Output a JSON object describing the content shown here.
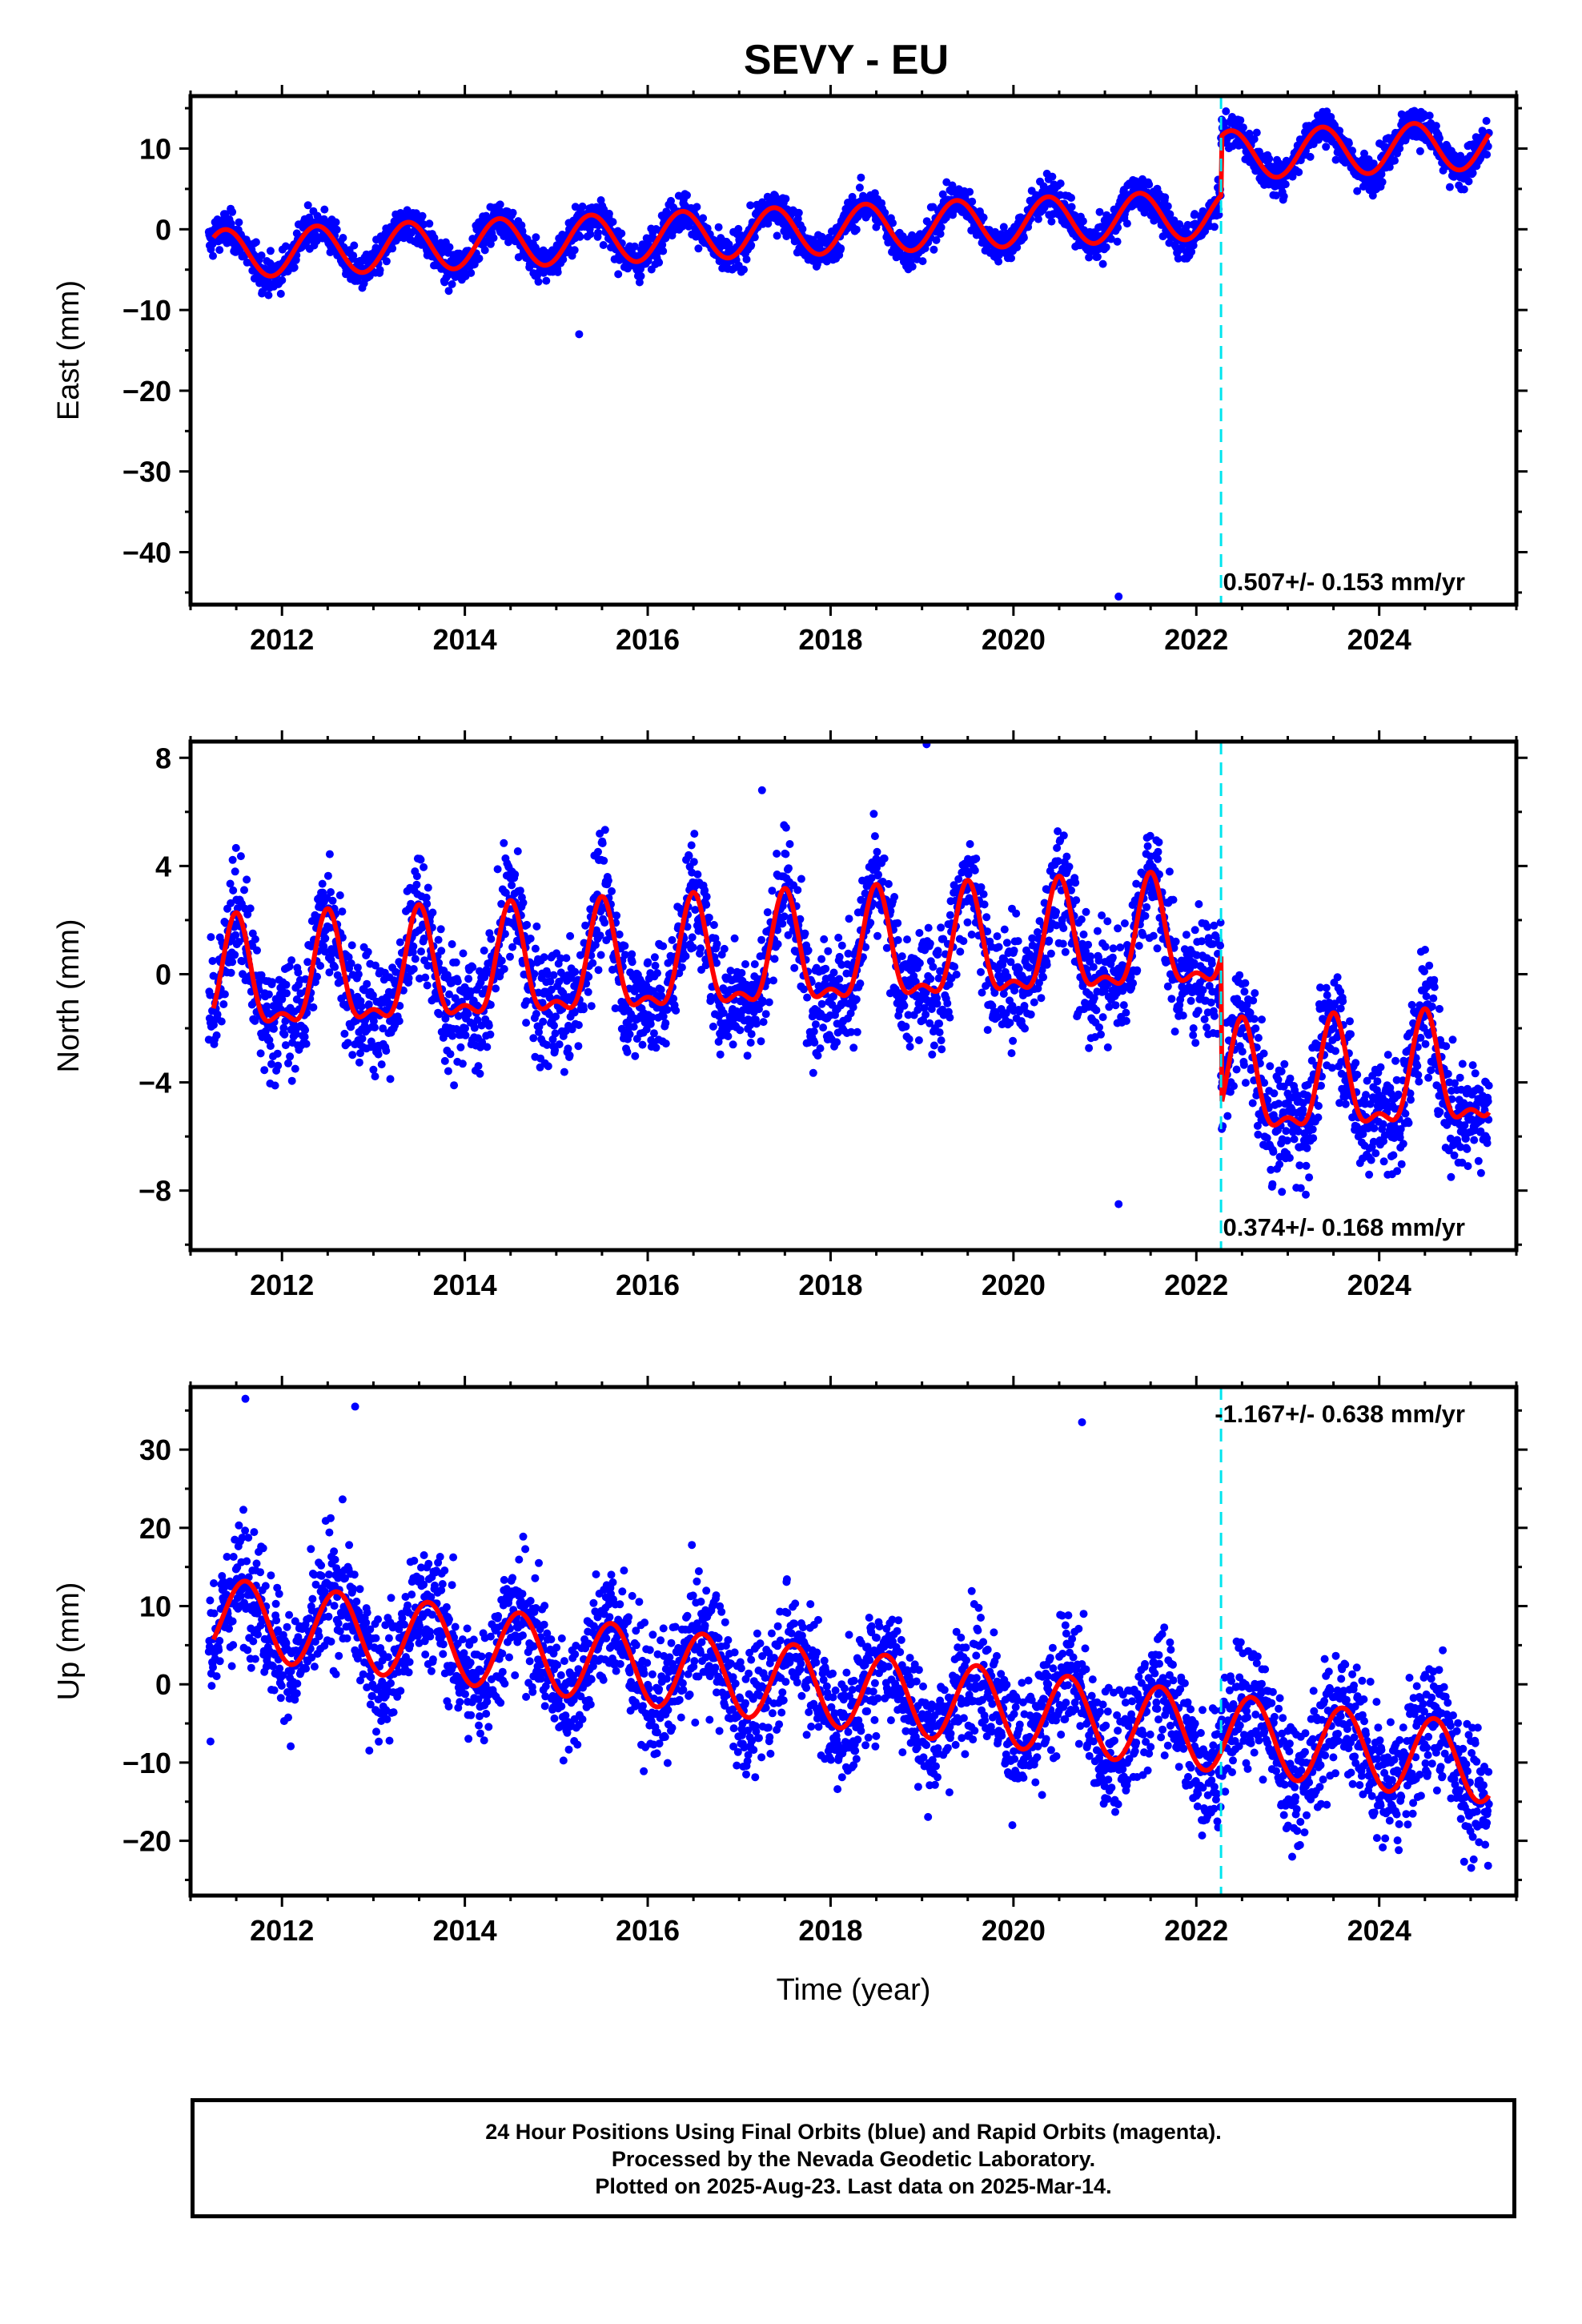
{
  "title": "SEVY - EU",
  "chart_data": [
    {
      "type": "scatter",
      "panel": "east",
      "ylabel": "East (mm)",
      "xlabel": "",
      "xlim": [
        2011.0,
        2025.5
      ],
      "ylim": [
        -46.5,
        16.5
      ],
      "yticks": [
        10,
        0,
        -10,
        -20,
        -30,
        -40
      ],
      "xticks": [
        2012,
        2014,
        2016,
        2018,
        2020,
        2022,
        2024
      ],
      "annotation": "0.507+/- 0.153 mm/yr",
      "offset_epoch": 2022.27,
      "model": {
        "intercept_2011": -3.2,
        "offset": 7.3,
        "amplitude": 3.0,
        "peak_phase": 0.38
      },
      "outliers": [
        {
          "x": 2015.25,
          "y": -13
        },
        {
          "x": 2021.15,
          "y": -45.5
        }
      ],
      "series": [
        {
          "name": "Final Orbits",
          "color": "#0000ff"
        },
        {
          "name": "Model",
          "color": "#ff0000"
        }
      ]
    },
    {
      "type": "scatter",
      "panel": "north",
      "ylabel": "North (mm)",
      "xlabel": "",
      "xlim": [
        2011.0,
        2025.5
      ],
      "ylim": [
        -10.2,
        8.6
      ],
      "yticks": [
        8,
        4,
        0,
        -4,
        -8
      ],
      "xticks": [
        2012,
        2014,
        2016,
        2018,
        2020,
        2022,
        2024
      ],
      "annotation": "0.374+/- 0.168 mm/yr",
      "offset_epoch": 2022.27,
      "model": {
        "intercept_2011": -0.5,
        "offset": -5.5,
        "amplitude": 1.9,
        "peak_phase": 0.5
      },
      "outliers": [
        {
          "x": 2019.05,
          "y": 8.5
        },
        {
          "x": 2021.15,
          "y": -8.5
        },
        {
          "x": 2017.25,
          "y": 6.8
        }
      ],
      "series": [
        {
          "name": "Final Orbits",
          "color": "#0000ff"
        },
        {
          "name": "Model",
          "color": "#ff0000"
        }
      ]
    },
    {
      "type": "scatter",
      "panel": "up",
      "ylabel": "Up (mm)",
      "xlabel": "Time (year)",
      "xlim": [
        2011.0,
        2025.5
      ],
      "ylim": [
        -27.0,
        38.0
      ],
      "yticks": [
        30,
        20,
        10,
        0,
        -10,
        -20
      ],
      "xticks": [
        2012,
        2014,
        2016,
        2018,
        2020,
        2022,
        2024
      ],
      "annotation": "-1.167+/- 0.638 mm/yr",
      "offset_epoch": 2022.27,
      "model": {
        "intercept_2011": 9.0,
        "offset": 0,
        "amplitude": 5.0,
        "peak_phase": 0.6
      },
      "outliers": [
        {
          "x": 2011.6,
          "y": 36.5
        },
        {
          "x": 2012.8,
          "y": 35.5
        },
        {
          "x": 2020.75,
          "y": 33.5
        }
      ],
      "series": [
        {
          "name": "Final Orbits",
          "color": "#0000ff"
        },
        {
          "name": "Model",
          "color": "#ff0000"
        }
      ]
    }
  ],
  "footer": {
    "line1": "24 Hour Positions Using Final Orbits (blue) and Rapid Orbits (magenta).",
    "line2": "Processed by the Nevada Geodetic Laboratory.",
    "line3": "Plotted on 2025-Aug-23. Last data on 2025-Mar-14."
  }
}
